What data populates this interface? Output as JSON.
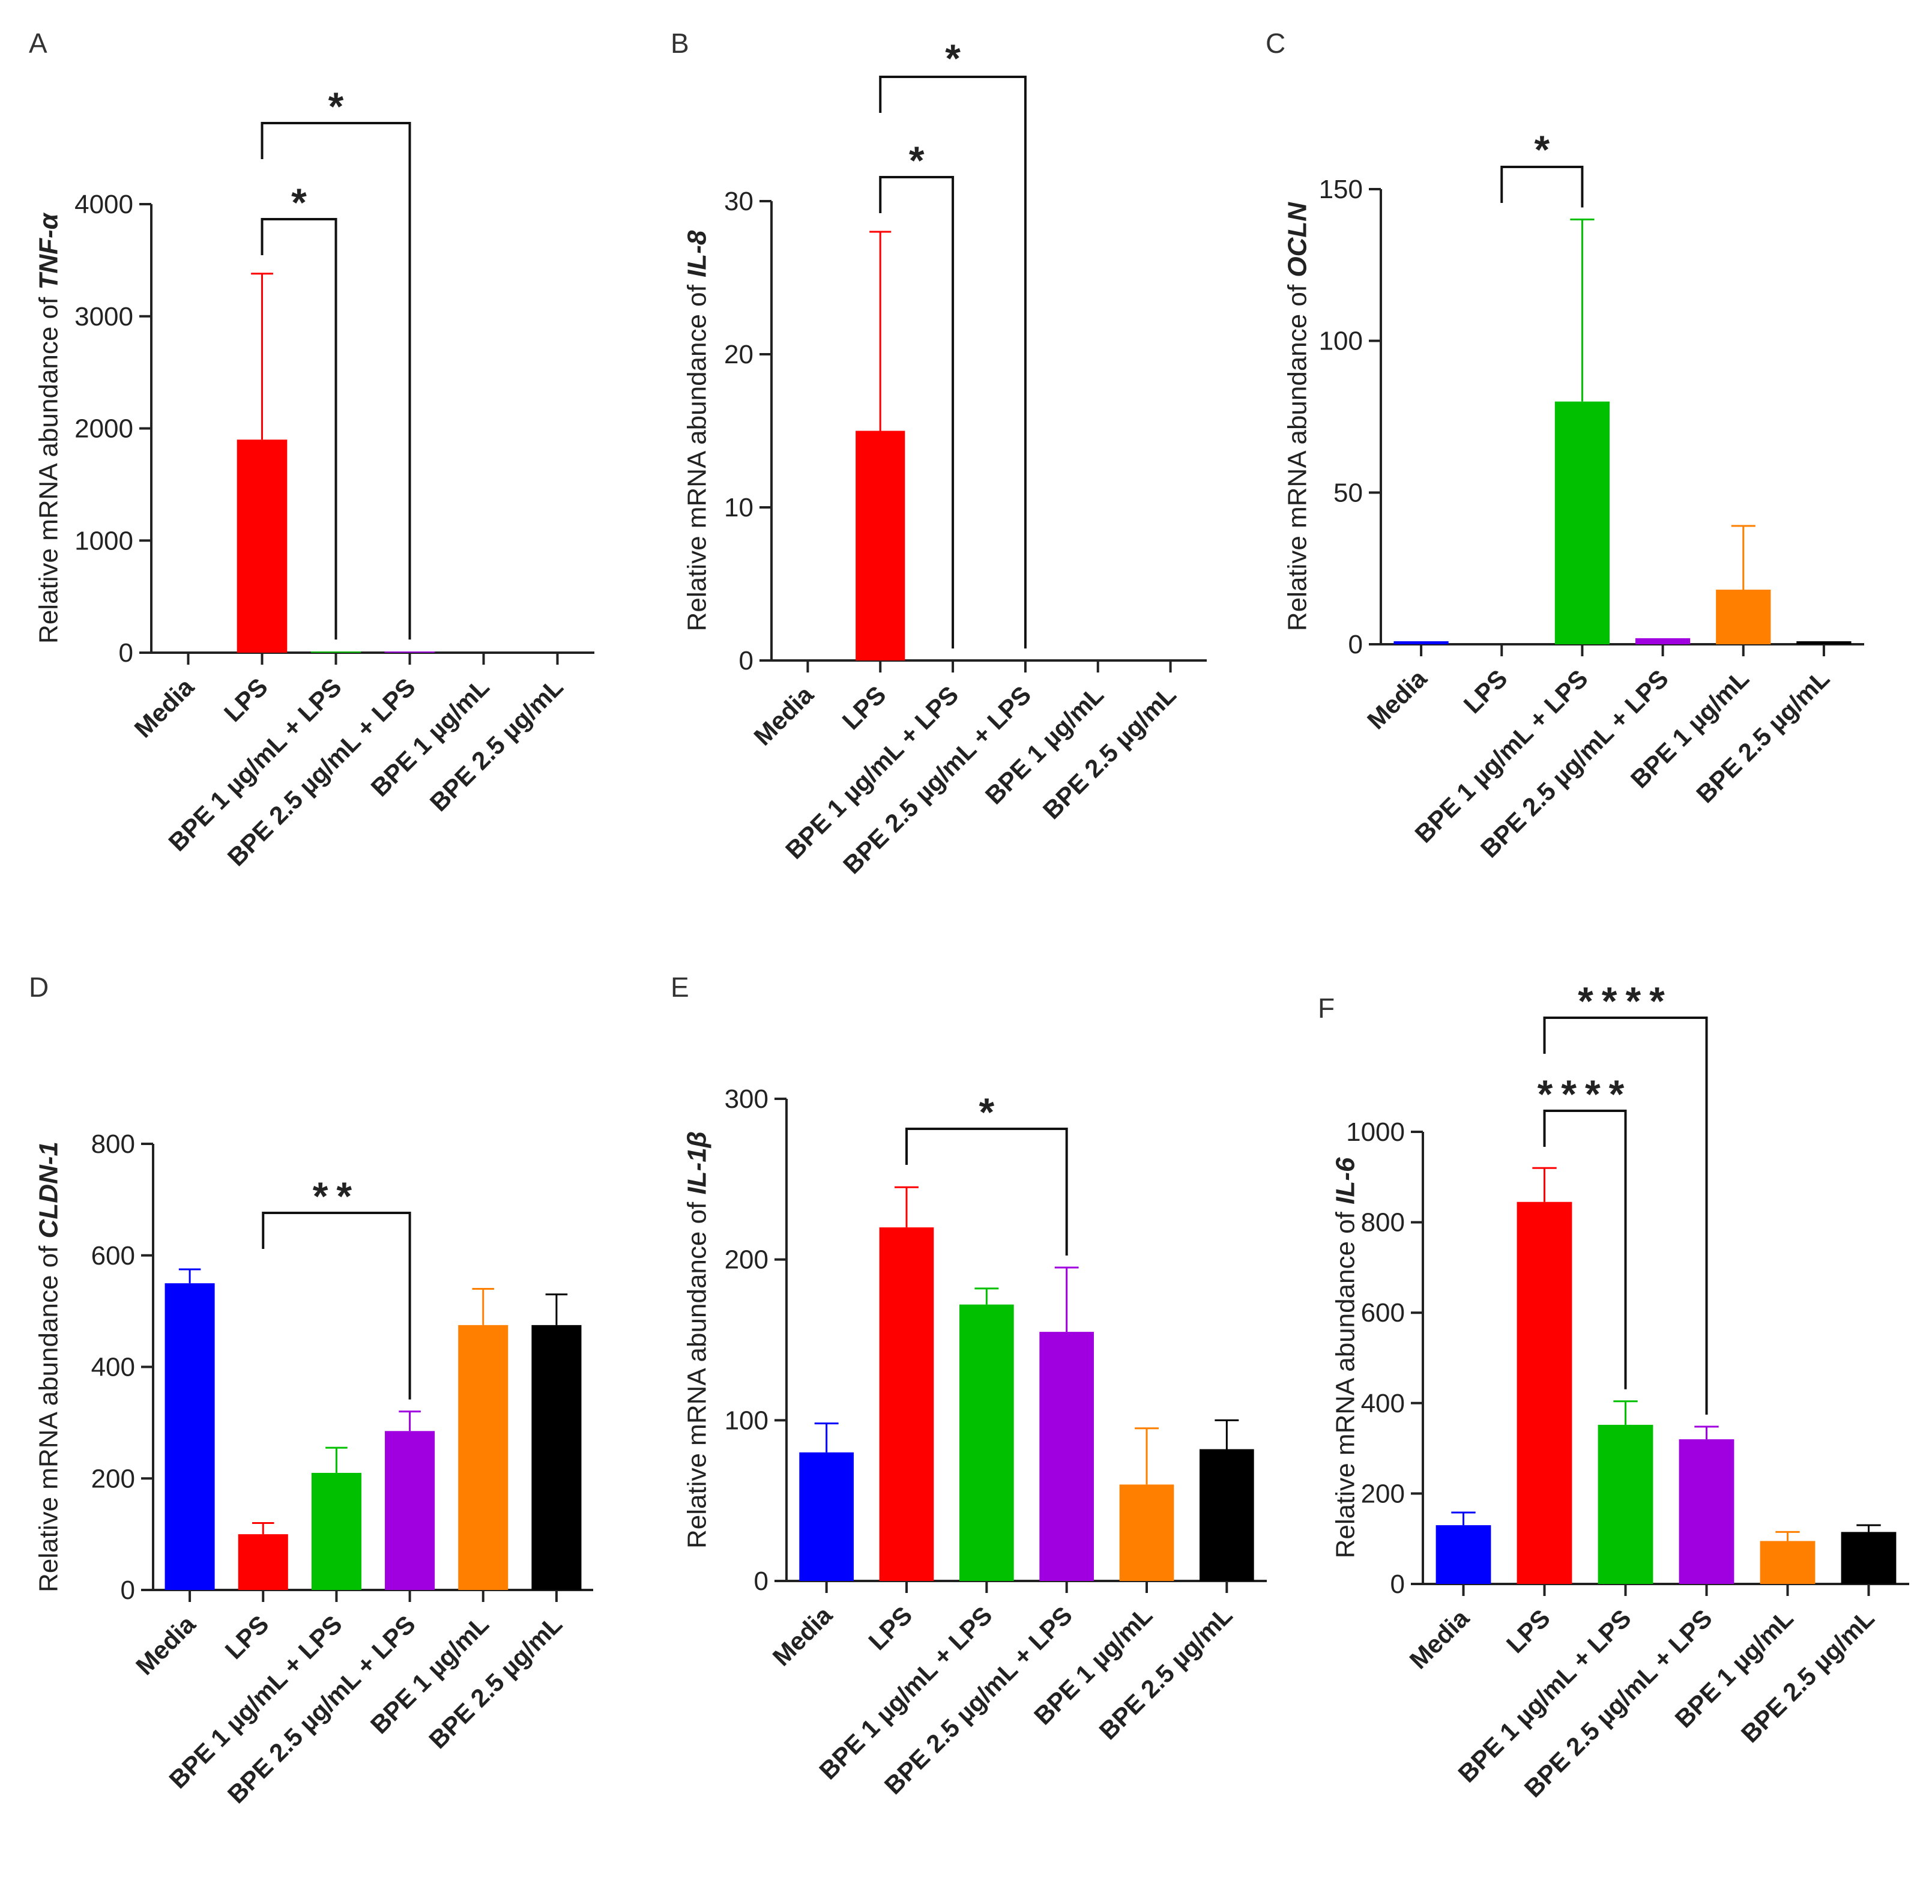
{
  "colors": {
    "Media": "#0000ff",
    "LPS": "#ff0000",
    "BPE 1 µg/mL + LPS": "#00c000",
    "BPE 2.5 µg/mL + LPS": "#a000e0",
    "BPE 1 µg/mL": "#ff8000",
    "BPE 2.5 µg/mL": "#000000",
    "axis": "#222222"
  },
  "chart_data": [
    {
      "panel": "A",
      "type": "bar",
      "ylabel_prefix": "Relative mRNA abundance of ",
      "gene": "TNF-α",
      "categories": [
        "Media",
        "LPS",
        "BPE 1 µg/mL + LPS",
        "BPE 2.5 µg/mL + LPS",
        "BPE 1 µg/mL",
        "BPE 2.5 µg/mL"
      ],
      "values": [
        0,
        1900,
        10,
        10,
        0,
        0
      ],
      "errors": [
        0,
        1480,
        0,
        0,
        0,
        0
      ],
      "ylim": [
        0,
        4000
      ],
      "yticks": [
        0,
        1000,
        2000,
        3000,
        4000
      ],
      "tick_labels": [
        "0",
        "1000",
        "2000",
        "3000",
        "4000"
      ],
      "significance": [
        {
          "from": 1,
          "to": 2,
          "label": "*"
        },
        {
          "from": 1,
          "to": 3,
          "label": "*"
        }
      ]
    },
    {
      "panel": "B",
      "type": "bar",
      "ylabel_prefix": "Relative mRNA abundance of ",
      "gene": "IL-8",
      "categories": [
        "Media",
        "LPS",
        "BPE 1 µg/mL + LPS",
        "BPE 2.5 µg/mL + LPS",
        "BPE 1 µg/mL",
        "BPE 2.5 µg/mL"
      ],
      "values": [
        0,
        15,
        0,
        0,
        0,
        0
      ],
      "errors": [
        0,
        13,
        0,
        0,
        0,
        0
      ],
      "ylim": [
        0,
        30
      ],
      "yticks": [
        0,
        10,
        20,
        30
      ],
      "tick_labels": [
        "0",
        "10",
        "20",
        "30"
      ],
      "significance": [
        {
          "from": 1,
          "to": 2,
          "label": "*"
        },
        {
          "from": 1,
          "to": 3,
          "label": "*"
        }
      ]
    },
    {
      "panel": "C",
      "type": "bar",
      "ylabel_prefix": "Relative mRNA abundance of ",
      "gene": "OCLN",
      "categories": [
        "Media",
        "LPS",
        "BPE 1 µg/mL + LPS",
        "BPE 2.5 µg/mL + LPS",
        "BPE 1 µg/mL",
        "BPE 2.5 µg/mL"
      ],
      "values": [
        1,
        0,
        80,
        2,
        18,
        1
      ],
      "errors": [
        0,
        0,
        60,
        0,
        21,
        0
      ],
      "ylim": [
        0,
        150
      ],
      "yticks": [
        0,
        50,
        100,
        150
      ],
      "tick_labels": [
        "0",
        "50",
        "100",
        "150"
      ],
      "significance": [
        {
          "from": 1,
          "to": 2,
          "label": "*"
        }
      ]
    },
    {
      "panel": "D",
      "type": "bar",
      "ylabel_prefix": "Relative mRNA abundance of ",
      "gene": "CLDN-1",
      "categories": [
        "Media",
        "LPS",
        "BPE 1 µg/mL + LPS",
        "BPE 2.5 µg/mL + LPS",
        "BPE 1 µg/mL",
        "BPE 2.5 µg/mL"
      ],
      "values": [
        550,
        100,
        210,
        285,
        475,
        475
      ],
      "errors": [
        25,
        20,
        45,
        35,
        65,
        55
      ],
      "ylim": [
        0,
        800
      ],
      "yticks": [
        0,
        200,
        400,
        600,
        800
      ],
      "tick_labels": [
        "0",
        "200",
        "400",
        "600",
        "800"
      ],
      "significance": [
        {
          "from": 1,
          "to": 3,
          "label": "**"
        }
      ]
    },
    {
      "panel": "E",
      "type": "bar",
      "ylabel_prefix": "Relative mRNA abundance of ",
      "gene": "IL-1β",
      "categories": [
        "Media",
        "LPS",
        "BPE 1 µg/mL + LPS",
        "BPE 2.5 µg/mL + LPS",
        "BPE 1 µg/mL",
        "BPE 2.5 µg/mL"
      ],
      "values": [
        80,
        220,
        172,
        155,
        60,
        82
      ],
      "errors": [
        18,
        25,
        10,
        40,
        35,
        18
      ],
      "ylim": [
        0,
        300
      ],
      "yticks": [
        0,
        100,
        200,
        300
      ],
      "tick_labels": [
        "0",
        "100",
        "200",
        "300"
      ],
      "significance": [
        {
          "from": 1,
          "to": 3,
          "label": "*"
        }
      ]
    },
    {
      "panel": "F",
      "type": "bar",
      "ylabel_prefix": "Relative mRNA abundance of ",
      "gene": "IL-6",
      "categories": [
        "Media",
        "LPS",
        "BPE 1 µg/mL + LPS",
        "BPE 2.5 µg/mL + LPS",
        "BPE 1 µg/mL",
        "BPE 2.5 µg/mL"
      ],
      "values": [
        130,
        845,
        352,
        320,
        95,
        115
      ],
      "errors": [
        28,
        75,
        52,
        28,
        20,
        15
      ],
      "ylim": [
        0,
        1000
      ],
      "yticks": [
        0,
        200,
        400,
        600,
        800,
        1000
      ],
      "tick_labels": [
        "0",
        "200",
        "400",
        "600",
        "800",
        "1000"
      ],
      "significance": [
        {
          "from": 1,
          "to": 2,
          "label": "****"
        },
        {
          "from": 1,
          "to": 3,
          "label": "****"
        }
      ]
    }
  ]
}
